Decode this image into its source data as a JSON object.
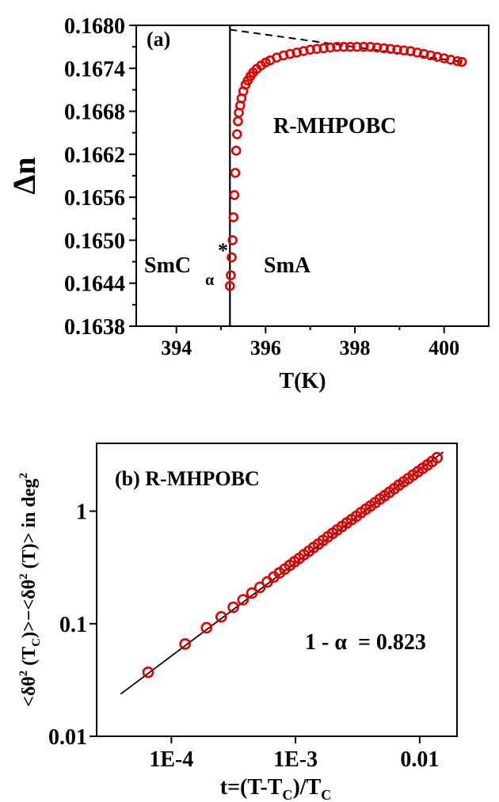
{
  "chart_data": [
    {
      "type": "scatter",
      "panel_label": "(a)",
      "xlabel": "T(K)",
      "ylabel": "Δn",
      "xlim": [
        393.1,
        401.0
      ],
      "ylim": [
        0.1638,
        0.168
      ],
      "xticks": [
        394,
        396,
        398,
        400
      ],
      "xtick_labels": [
        "394",
        "396",
        "398",
        "400"
      ],
      "yticks": [
        0.1638,
        0.1644,
        0.165,
        0.1656,
        0.1662,
        0.1668,
        0.1674,
        0.168
      ],
      "ytick_labels": [
        "0.1638",
        "0.1644",
        "0.1650",
        "0.1656",
        "0.1662",
        "0.1668",
        "0.1674",
        "0.1680"
      ],
      "vertical_line_x": 395.2,
      "annotations": {
        "compound": "R-MHPOBC",
        "phase_left": "SmC",
        "phase_left_sub": "α",
        "phase_left_sup": "*",
        "phase_right": "SmA"
      },
      "series": [
        {
          "marker": "open-circle",
          "color": "#e00000",
          "x": [
            395.2,
            395.22,
            395.24,
            395.26,
            395.28,
            395.3,
            395.32,
            395.34,
            395.36,
            395.38,
            395.4,
            395.43,
            395.46,
            395.5,
            395.55,
            395.6,
            395.66,
            395.72,
            395.8,
            395.9,
            396.0,
            396.1,
            396.25,
            396.4,
            396.55,
            396.7,
            396.85,
            397.0,
            397.15,
            397.3,
            397.45,
            397.6,
            397.75,
            397.9,
            398.05,
            398.2,
            398.35,
            398.5,
            398.65,
            398.8,
            398.95,
            399.1,
            399.25,
            399.4,
            399.55,
            399.7,
            399.85,
            400.0,
            400.15,
            400.3,
            400.4
          ],
          "y": [
            0.16436,
            0.16451,
            0.16476,
            0.165,
            0.16532,
            0.16563,
            0.16594,
            0.16625,
            0.16648,
            0.16666,
            0.16678,
            0.16688,
            0.16698,
            0.16708,
            0.16717,
            0.16723,
            0.16729,
            0.16734,
            0.16739,
            0.16744,
            0.16748,
            0.16751,
            0.16755,
            0.16758,
            0.1676,
            0.16762,
            0.16764,
            0.16766,
            0.16767,
            0.16768,
            0.16769,
            0.1677,
            0.1677,
            0.1677,
            0.1677,
            0.1677,
            0.1677,
            0.16769,
            0.16768,
            0.16767,
            0.16766,
            0.16765,
            0.16764,
            0.16762,
            0.1676,
            0.16758,
            0.16756,
            0.16754,
            0.16752,
            0.1675,
            0.16749
          ]
        }
      ],
      "fit_line": {
        "style": "dashed",
        "x": [
          395.2,
          400.4
        ],
        "y": [
          0.16794,
          0.16749
        ]
      }
    },
    {
      "type": "scatter",
      "panel_label": "(b) R-MHPOBC",
      "xlabel": "t=(T-T",
      "xlabel_sub": "C",
      "xlabel_end": ")/T",
      "xlabel_sub2": "C",
      "ylabel": "<δθ² (T_C)>−<δθ² (T)> in deg²",
      "x_scale": "log",
      "y_scale": "log",
      "xlim": [
        2.5e-05,
        0.02
      ],
      "ylim": [
        0.01,
        4
      ],
      "xticks": [
        0.0001,
        0.001,
        0.01
      ],
      "xtick_labels": [
        "1E-4",
        "1E-3",
        "0.01"
      ],
      "yticks": [
        0.01,
        0.1,
        1
      ],
      "ytick_labels": [
        "0.01",
        "0.1",
        "1"
      ],
      "annotation": "1 - α  = 0.823",
      "series": [
        {
          "marker": "open-circle",
          "color": "#e00000",
          "x": [
            6.5e-05,
            0.000129,
            0.000192,
            0.000252,
            0.000316,
            0.000378,
            0.000446,
            0.000517,
            0.000593,
            0.000668,
            0.000743,
            0.00082,
            0.0009,
            0.00098,
            0.00107,
            0.00117,
            0.00128,
            0.0014,
            0.00153,
            0.00167,
            0.00182,
            0.00199,
            0.00217,
            0.00237,
            0.00259,
            0.00283,
            0.00309,
            0.00337,
            0.00368,
            0.00402,
            0.00439,
            0.00479,
            0.00523,
            0.00571,
            0.00624,
            0.00681,
            0.00744,
            0.00812,
            0.00887,
            0.00969,
            0.01058,
            0.01155,
            0.0126,
            0.0138
          ],
          "y": [
            0.037,
            0.066,
            0.092,
            0.115,
            0.14,
            0.163,
            0.187,
            0.21,
            0.235,
            0.26,
            0.283,
            0.306,
            0.33,
            0.355,
            0.38,
            0.41,
            0.44,
            0.475,
            0.51,
            0.55,
            0.59,
            0.635,
            0.68,
            0.73,
            0.785,
            0.84,
            0.9,
            0.97,
            1.04,
            1.11,
            1.19,
            1.28,
            1.37,
            1.47,
            1.58,
            1.7,
            1.82,
            1.95,
            2.09,
            2.24,
            2.4,
            2.57,
            2.76,
            2.98
          ]
        }
      ],
      "fit_line": {
        "style": "solid",
        "x": [
          3.9e-05,
          0.0155
        ],
        "y": [
          0.0237,
          3.35
        ]
      }
    }
  ]
}
